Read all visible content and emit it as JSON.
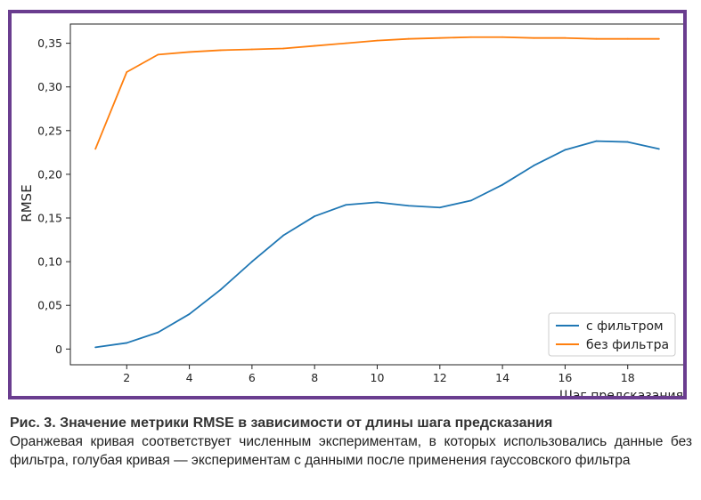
{
  "chart_data": {
    "type": "line",
    "xlabel": "Шаг предсказания",
    "ylabel": "RMSE",
    "xlim": [
      0.2,
      19.8
    ],
    "ylim": [
      -0.018,
      0.372
    ],
    "xticks": [
      2,
      4,
      6,
      8,
      10,
      12,
      14,
      16,
      18
    ],
    "yticks": [
      0,
      0.05,
      0.1,
      0.15,
      0.2,
      0.25,
      0.3,
      0.35
    ],
    "ytick_labels": [
      "0",
      "0,05",
      "0,10",
      "0,15",
      "0,20",
      "0,25",
      "0,30",
      "0,35"
    ],
    "grid": false,
    "legend_position": "lower-right",
    "x": [
      1,
      2,
      3,
      4,
      5,
      6,
      7,
      8,
      9,
      10,
      11,
      12,
      13,
      14,
      15,
      16,
      17,
      18,
      19
    ],
    "series": [
      {
        "name": "с фильтром",
        "color": "#1f77b4",
        "values": [
          0.002,
          0.007,
          0.019,
          0.04,
          0.068,
          0.1,
          0.13,
          0.152,
          0.165,
          0.168,
          0.164,
          0.162,
          0.17,
          0.188,
          0.21,
          0.228,
          0.238,
          0.237,
          0.229
        ]
      },
      {
        "name": "без фильтра",
        "color": "#ff7f0e",
        "values": [
          0.229,
          0.317,
          0.337,
          0.34,
          0.342,
          0.343,
          0.344,
          0.347,
          0.35,
          0.353,
          0.355,
          0.356,
          0.357,
          0.357,
          0.356,
          0.356,
          0.355,
          0.355,
          0.355
        ]
      }
    ]
  },
  "caption": {
    "title": "Рис. 3. Значение метрики RMSE в зависимости от длины шага предсказания",
    "text": "Оранжевая кривая соответствует численным экспериментам, в которых использовались данные без фильтра, голубая кривая — экспериментам с данными после применения гауссовского фильтра"
  }
}
